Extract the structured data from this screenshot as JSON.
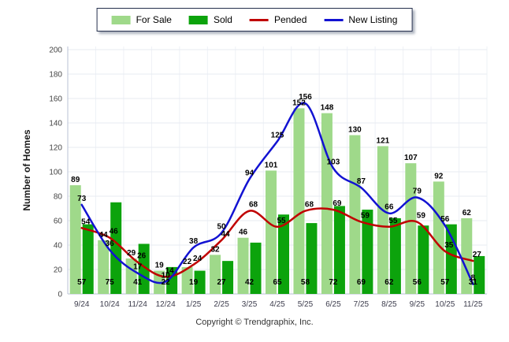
{
  "footer": {
    "copyright": "Copyright © Trendgraphix, Inc."
  },
  "chart_data": {
    "type": "bar",
    "subtype": "grouped bars with smoothed overlay lines",
    "title": "",
    "xlabel": "",
    "ylabel": "Number of Homes",
    "ylim": [
      0,
      200
    ],
    "ytick_step": 20,
    "grid": true,
    "legend_position": "top-center",
    "categories": [
      "9/24",
      "10/24",
      "11/24",
      "12/24",
      "1/25",
      "2/25",
      "3/25",
      "4/25",
      "5/25",
      "6/25",
      "7/25",
      "8/25",
      "9/25",
      "10/25",
      "11/25"
    ],
    "series": [
      {
        "name": "For Sale",
        "type": "bar",
        "color": "#9fd98a",
        "values": [
          89,
          44,
          29,
          19,
          22,
          32,
          46,
          101,
          152,
          148,
          130,
          121,
          107,
          92,
          62
        ]
      },
      {
        "name": "Sold",
        "type": "bar",
        "color": "#0ca30c",
        "values": [
          57,
          75,
          41,
          22,
          19,
          27,
          42,
          65,
          58,
          72,
          69,
          62,
          56,
          57,
          31
        ]
      },
      {
        "name": "Pended",
        "type": "line",
        "color": "#c00000",
        "values": [
          54,
          46,
          26,
          14,
          24,
          44,
          68,
          55,
          68,
          69,
          59,
          55,
          59,
          35,
          27
        ]
      },
      {
        "name": "New Listing",
        "type": "line",
        "color": "#1212d2",
        "values": [
          73,
          36,
          17,
          10,
          38,
          50,
          94,
          125,
          156,
          103,
          87,
          66,
          79,
          56,
          8
        ]
      }
    ],
    "colors": {
      "grid_h": "#e7ebf2",
      "grid_v": "#eef1f6",
      "axis": "#b9c2d6",
      "tick_text": "#444444",
      "label_text": "#000000"
    }
  }
}
